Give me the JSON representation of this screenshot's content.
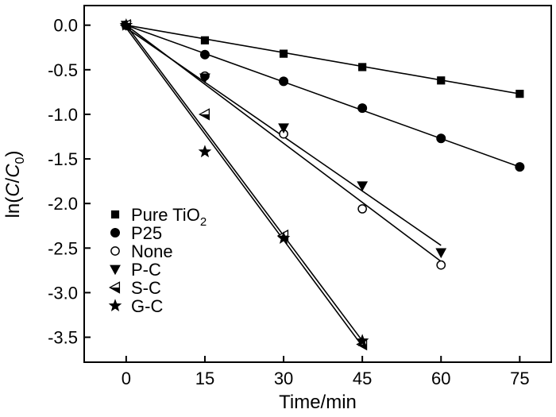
{
  "chart_data": {
    "type": "scatter",
    "title": "",
    "xlabel": "Time/min",
    "ylabel_parts": [
      "ln(",
      "C",
      "/",
      "C",
      "0",
      ")"
    ],
    "xlim": [
      -8,
      81
    ],
    "ylim": [
      -3.78,
      0.22
    ],
    "xticks": [
      0,
      15,
      30,
      45,
      60,
      75
    ],
    "xtick_labels": [
      "0",
      "15",
      "30",
      "45",
      "60",
      "75"
    ],
    "yticks": [
      0.0,
      -0.5,
      -1.0,
      -1.5,
      -2.0,
      -2.5,
      -3.0,
      -3.5
    ],
    "ytick_labels": [
      "0.0",
      "-0.5",
      "-1.0",
      "-1.5",
      "-2.0",
      "-2.5",
      "-3.0",
      "-3.5"
    ],
    "grid": false,
    "legend_position": "bottom-left",
    "series": [
      {
        "name": "Pure TiO",
        "name_sub": "2",
        "marker": "square",
        "x": [
          0,
          15,
          30,
          45,
          60,
          75
        ],
        "y": [
          0,
          -0.17,
          -0.32,
          -0.47,
          -0.62,
          -0.77
        ],
        "fit": {
          "x": [
            0,
            75
          ],
          "y": [
            0,
            -0.77
          ]
        }
      },
      {
        "name": "P25",
        "name_sub": "",
        "marker": "circle",
        "x": [
          0,
          15,
          30,
          45,
          60,
          75
        ],
        "y": [
          0,
          -0.33,
          -0.63,
          -0.93,
          -1.27,
          -1.59
        ],
        "fit": {
          "x": [
            0,
            75
          ],
          "y": [
            0,
            -1.59
          ]
        }
      },
      {
        "name": "None",
        "name_sub": "",
        "marker": "open-circle",
        "x": [
          0,
          15,
          30,
          45,
          60
        ],
        "y": [
          0,
          -0.57,
          -1.22,
          -2.06,
          -2.69
        ],
        "fit": {
          "x": [
            0,
            60
          ],
          "y": [
            0,
            -2.65
          ]
        }
      },
      {
        "name": "P-C",
        "name_sub": "",
        "marker": "triangle-down",
        "x": [
          0,
          15,
          30,
          45,
          60
        ],
        "y": [
          0,
          -0.59,
          -1.15,
          -1.8,
          -2.55
        ],
        "fit": {
          "x": [
            0,
            60
          ],
          "y": [
            -0.03,
            -2.47
          ]
        }
      },
      {
        "name": "S-C",
        "name_sub": "",
        "marker": "triangle-left",
        "x": [
          0,
          15,
          30,
          45
        ],
        "y": [
          0,
          -1.0,
          -2.36,
          -3.58
        ],
        "fit": {
          "x": [
            0,
            45
          ],
          "y": [
            -0.03,
            -3.6
          ]
        }
      },
      {
        "name": "G-C",
        "name_sub": "",
        "marker": "star",
        "x": [
          0,
          15,
          30,
          45
        ],
        "y": [
          0,
          -1.42,
          -2.39,
          -3.54
        ],
        "fit": {
          "x": [
            0,
            45
          ],
          "y": [
            0,
            -3.54
          ]
        }
      }
    ]
  }
}
